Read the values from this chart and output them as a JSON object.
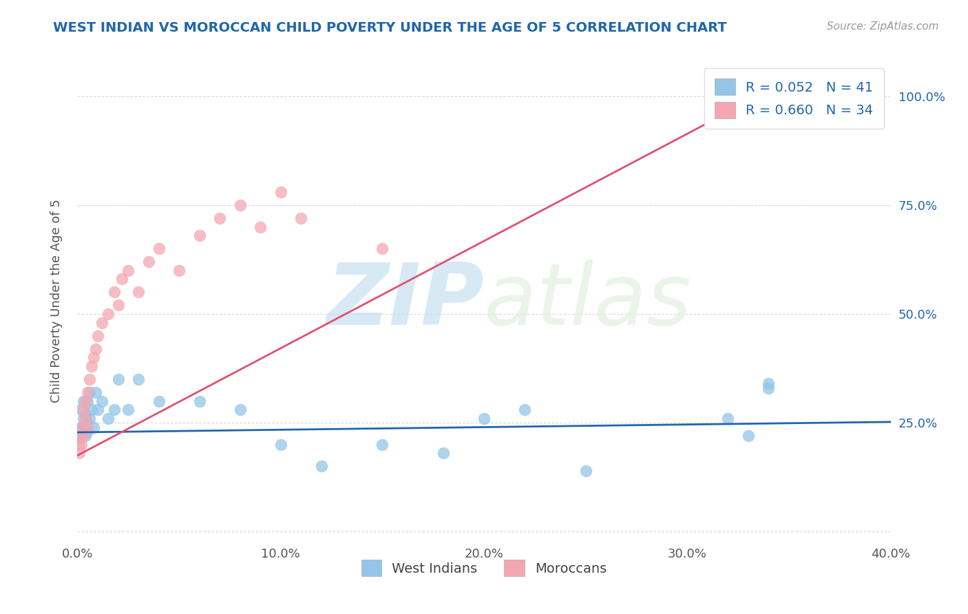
{
  "title": "WEST INDIAN VS MOROCCAN CHILD POVERTY UNDER THE AGE OF 5 CORRELATION CHART",
  "source": "Source: ZipAtlas.com",
  "ylabel": "Child Poverty Under the Age of 5",
  "xlim": [
    0.0,
    0.4
  ],
  "ylim": [
    -0.02,
    1.08
  ],
  "xticks": [
    0.0,
    0.1,
    0.2,
    0.3,
    0.4
  ],
  "xticklabels": [
    "0.0%",
    "10.0%",
    "20.0%",
    "30.0%",
    "40.0%"
  ],
  "yticks": [
    0.0,
    0.25,
    0.5,
    0.75,
    1.0
  ],
  "right_yticklabels": [
    "",
    "25.0%",
    "50.0%",
    "75.0%",
    "100.0%"
  ],
  "watermark_zip": "ZIP",
  "watermark_atlas": "atlas",
  "legend_blue_label": "R = 0.052   N = 41",
  "legend_pink_label": "R = 0.660   N = 34",
  "legend_blue_label2": "West Indians",
  "legend_pink_label2": "Moroccans",
  "blue_color": "#94c5e8",
  "pink_color": "#f4a7b2",
  "blue_line_color": "#2166ac",
  "pink_line_color": "#e05070",
  "title_color": "#2166ac",
  "source_color": "#999999",
  "background_color": "#ffffff",
  "grid_color": "#cccccc",
  "west_indians_x": [
    0.001,
    0.001,
    0.001,
    0.001,
    0.002,
    0.002,
    0.002,
    0.003,
    0.003,
    0.003,
    0.004,
    0.004,
    0.005,
    0.005,
    0.005,
    0.006,
    0.006,
    0.007,
    0.008,
    0.009,
    0.01,
    0.012,
    0.015,
    0.018,
    0.02,
    0.025,
    0.03,
    0.04,
    0.06,
    0.08,
    0.1,
    0.12,
    0.15,
    0.18,
    0.2,
    0.22,
    0.25,
    0.32,
    0.33,
    0.34,
    0.34
  ],
  "west_indians_y": [
    0.235,
    0.225,
    0.215,
    0.22,
    0.24,
    0.22,
    0.28,
    0.26,
    0.3,
    0.24,
    0.22,
    0.27,
    0.23,
    0.25,
    0.3,
    0.26,
    0.32,
    0.28,
    0.24,
    0.32,
    0.28,
    0.3,
    0.26,
    0.28,
    0.35,
    0.28,
    0.35,
    0.3,
    0.3,
    0.28,
    0.2,
    0.15,
    0.2,
    0.18,
    0.26,
    0.28,
    0.14,
    0.26,
    0.22,
    0.33,
    0.34
  ],
  "moroccans_x": [
    0.001,
    0.001,
    0.001,
    0.002,
    0.002,
    0.003,
    0.003,
    0.004,
    0.004,
    0.005,
    0.005,
    0.006,
    0.007,
    0.008,
    0.009,
    0.01,
    0.012,
    0.015,
    0.018,
    0.02,
    0.022,
    0.025,
    0.03,
    0.035,
    0.04,
    0.05,
    0.06,
    0.07,
    0.08,
    0.09,
    0.1,
    0.11,
    0.15,
    0.33
  ],
  "moroccans_y": [
    0.22,
    0.2,
    0.18,
    0.24,
    0.2,
    0.28,
    0.22,
    0.26,
    0.3,
    0.24,
    0.32,
    0.35,
    0.38,
    0.4,
    0.42,
    0.45,
    0.48,
    0.5,
    0.55,
    0.52,
    0.58,
    0.6,
    0.55,
    0.62,
    0.65,
    0.6,
    0.68,
    0.72,
    0.75,
    0.7,
    0.78,
    0.72,
    0.65,
    1.0
  ],
  "pink_line_x0": 0.0,
  "pink_line_y0": 0.175,
  "pink_line_x1": 0.335,
  "pink_line_y1": 1.0,
  "blue_line_x0": 0.0,
  "blue_line_y0": 0.228,
  "blue_line_x1": 0.4,
  "blue_line_y1": 0.252
}
